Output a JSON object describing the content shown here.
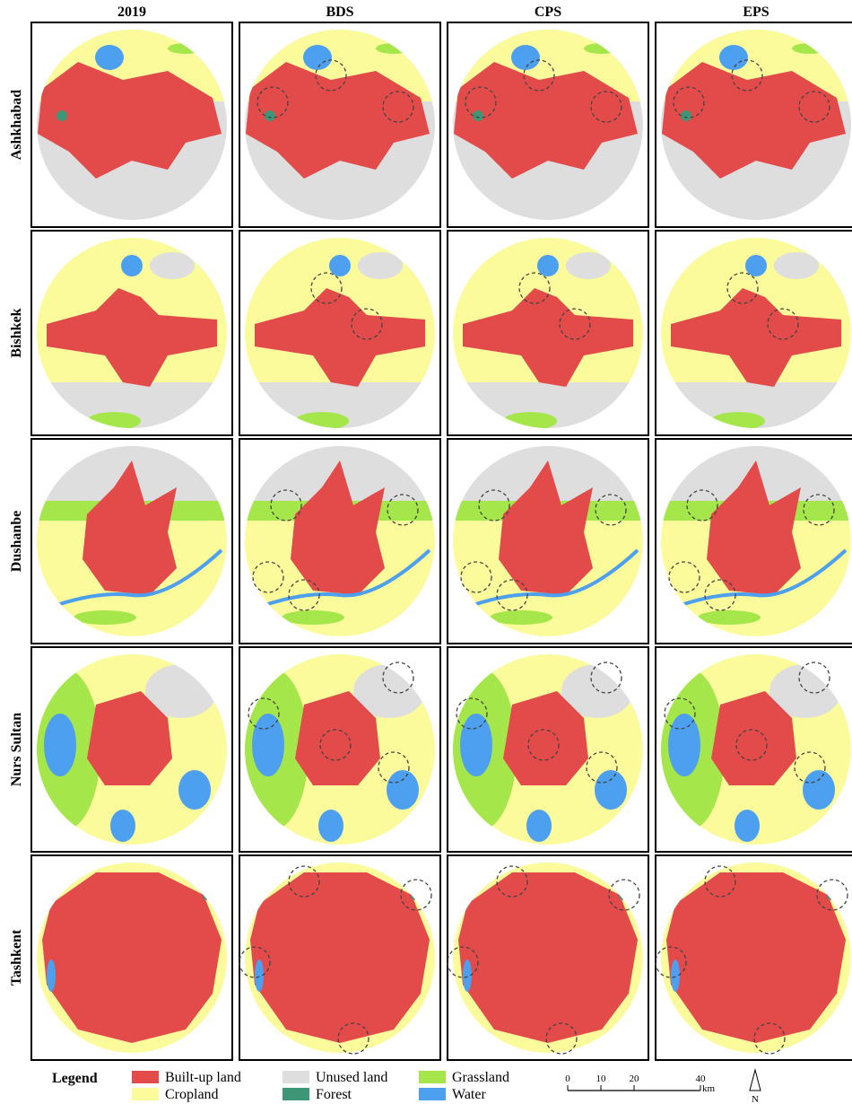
{
  "columns": [
    "2019",
    "BDS",
    "CPS",
    "EPS"
  ],
  "rows": [
    "Ashkhabad",
    "Bishkek",
    "Dushanbe",
    "Nurs Sultan",
    "Tashkent"
  ],
  "legend": {
    "title": "Legend",
    "items": [
      {
        "label": "Built-up land",
        "color": "#e34a4a"
      },
      {
        "label": "Cropland",
        "color": "#fbfb9c"
      },
      {
        "label": "Unused land",
        "color": "#dedede"
      },
      {
        "label": "Forest",
        "color": "#3d9777"
      },
      {
        "label": "Grassland",
        "color": "#a5e64a"
      },
      {
        "label": "Water",
        "color": "#4d9ff0"
      }
    ]
  },
  "scale_bar": {
    "ticks": [
      0,
      10,
      20,
      40
    ],
    "unit": "km"
  },
  "north_arrow": "N"
}
